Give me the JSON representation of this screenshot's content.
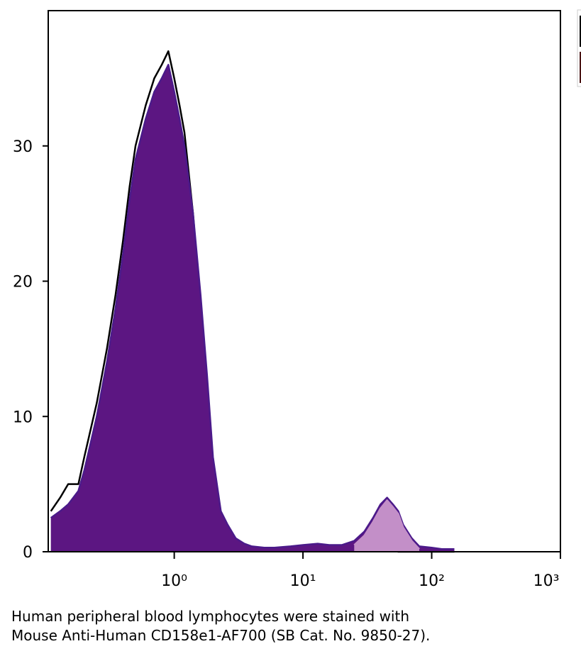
{
  "chart_data": {
    "type": "area",
    "x": [
      0.11,
      0.13,
      0.15,
      0.18,
      0.2,
      0.25,
      0.3,
      0.35,
      0.4,
      0.45,
      0.5,
      0.6,
      0.7,
      0.8,
      0.9,
      1.0,
      1.1,
      1.2,
      1.4,
      1.6,
      1.8,
      2.0,
      2.3,
      2.6,
      3,
      3.5,
      4,
      5,
      6,
      8,
      10,
      13,
      16,
      20,
      25,
      30,
      35,
      40,
      45,
      50,
      55,
      60,
      70,
      80,
      100,
      120,
      150
    ],
    "series": [
      {
        "color": "#000000",
        "fill": null,
        "values": [
          3,
          4,
          5,
          5,
          7,
          11,
          15,
          19,
          23,
          27,
          30,
          33,
          35,
          36,
          37,
          35,
          33,
          31,
          25,
          18,
          12,
          6,
          2.5,
          1.5,
          0.8,
          0.5,
          0.3,
          0.2,
          0.2,
          0.2,
          0.1,
          0.1,
          0.1,
          0.1,
          0.1,
          0.1,
          0.1,
          0.1,
          0.1,
          0.1,
          0,
          0,
          0,
          0,
          0,
          0,
          0
        ]
      },
      {
        "color": "#4b1a8a",
        "fill": "#5c1682",
        "values": [
          2.5,
          3,
          3.5,
          4.5,
          6,
          10,
          14,
          18,
          22,
          26,
          29,
          32,
          34,
          35,
          36,
          34,
          32,
          30,
          25,
          19,
          13,
          7,
          3,
          2,
          1,
          0.6,
          0.4,
          0.3,
          0.3,
          0.4,
          0.5,
          0.6,
          0.5,
          0.5,
          0.8,
          1.5,
          2.5,
          3.5,
          4,
          3.5,
          3,
          2,
          1,
          0.4,
          0.3,
          0.2,
          0.2
        ]
      },
      {
        "color": "#c38fc8",
        "fill": "#c38fc8",
        "values": [
          null,
          null,
          null,
          null,
          null,
          null,
          null,
          null,
          null,
          null,
          null,
          null,
          null,
          null,
          null,
          null,
          null,
          null,
          null,
          null,
          null,
          null,
          null,
          null,
          null,
          null,
          null,
          null,
          null,
          null,
          null,
          null,
          null,
          null,
          0.5,
          1.2,
          2.2,
          3.2,
          3.8,
          3.3,
          2.8,
          1.8,
          0.8,
          0.2,
          null,
          null,
          null
        ]
      }
    ],
    "xlog": true,
    "xlim": [
      0.105,
      1000
    ],
    "ylim": [
      0,
      40
    ],
    "xticks": [
      {
        "value": 1,
        "label": "10⁰"
      },
      {
        "value": 10,
        "label": "10¹"
      },
      {
        "value": 100,
        "label": "10²"
      },
      {
        "value": 1000,
        "label": "10³"
      }
    ],
    "yticks": [
      0,
      10,
      20,
      30
    ]
  },
  "caption": [
    "Human peripheral blood lymphocytes were stained with",
    "Mouse Anti-Human CD158e1-AF700 (SB Cat. No. 9850-27)."
  ]
}
